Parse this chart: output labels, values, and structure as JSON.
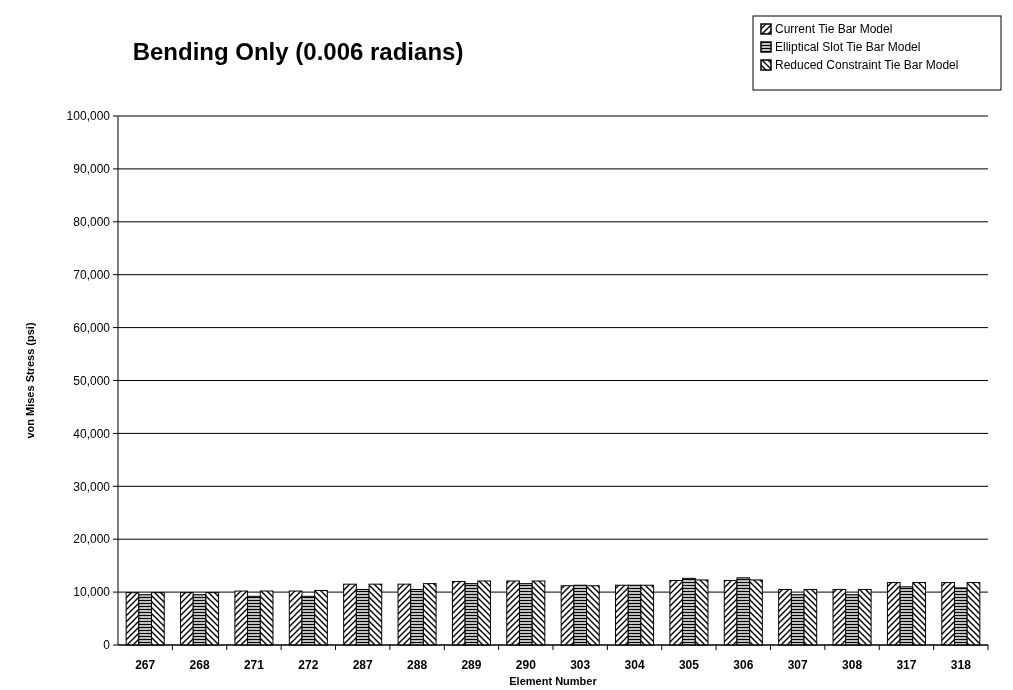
{
  "chart_data": {
    "type": "bar",
    "title": "Bending Only (0.006 radians)",
    "xlabel": "Element Number",
    "ylabel": "von Mises Stress (psi)",
    "categories": [
      "267",
      "268",
      "271",
      "272",
      "287",
      "288",
      "289",
      "290",
      "303",
      "304",
      "305",
      "306",
      "307",
      "308",
      "317",
      "318"
    ],
    "series": [
      {
        "name": "Current Tie Bar Model",
        "color": "#000000",
        "values": [
          9900,
          9900,
          10200,
          10200,
          11500,
          11500,
          12000,
          12100,
          11200,
          11300,
          12200,
          12200,
          10500,
          10500,
          11800,
          11800
        ]
      },
      {
        "name": "Elliptical Slot Tie Bar Model",
        "color": "#000000",
        "values": [
          9500,
          9500,
          9200,
          9200,
          10500,
          10500,
          11600,
          11600,
          11300,
          11300,
          12600,
          12700,
          9500,
          9500,
          11000,
          10800
        ]
      },
      {
        "name": "Reduced Constraint Tie Bar Model",
        "color": "#000000",
        "values": [
          9900,
          9900,
          10200,
          10300,
          11500,
          11600,
          12100,
          12100,
          11200,
          11300,
          12300,
          12300,
          10500,
          10500,
          11800,
          11800
        ]
      }
    ],
    "ylim": [
      0,
      100000
    ],
    "yticks": [
      0,
      {
        "value": 10000,
        "label": "10,000"
      },
      {
        "value": 20000,
        "label": "20,000"
      },
      {
        "value": 30000,
        "label": "30,000"
      },
      {
        "value": 40000,
        "label": "40,000"
      },
      {
        "value": 50000,
        "label": "50,000"
      },
      {
        "value": 60000,
        "label": "60,000"
      },
      {
        "value": 70000,
        "label": "70,000"
      },
      {
        "value": 80000,
        "label": "80,000"
      },
      {
        "value": 90000,
        "label": "90,000"
      },
      {
        "value": 100000,
        "label": "100,000"
      }
    ],
    "grid": "y",
    "legend": "top right"
  }
}
